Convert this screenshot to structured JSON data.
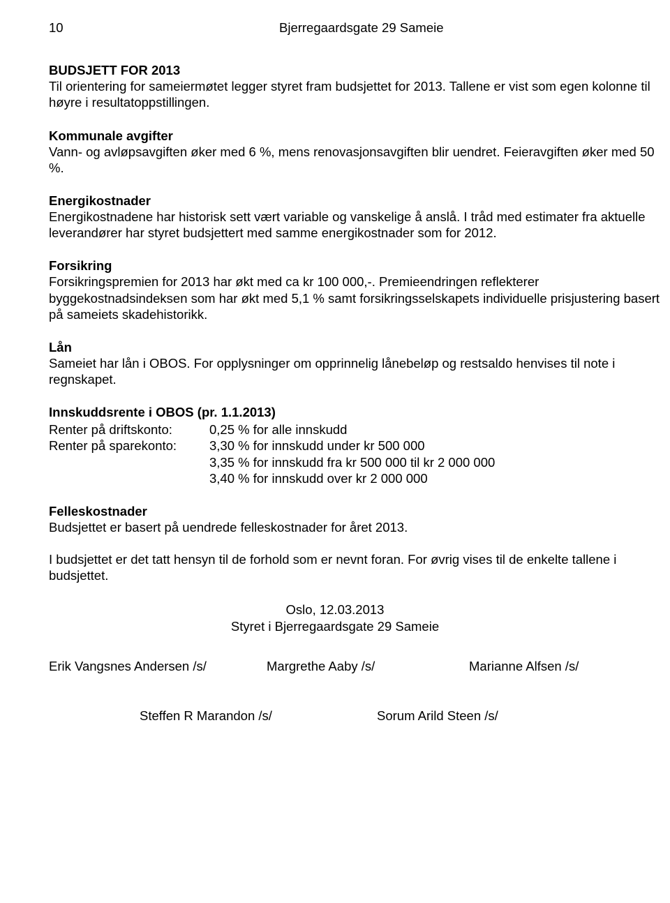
{
  "header": {
    "page_number": "10",
    "title": "Bjerregaardsgate 29 Sameie"
  },
  "budget": {
    "heading": "BUDSJETT FOR 2013",
    "text": "Til orientering for sameiermøtet legger styret fram budsjettet for 2013. Tallene er vist som egen kolonne til høyre i resultatoppstillingen."
  },
  "kommunale": {
    "heading": "Kommunale avgifter",
    "text": "Vann- og avløpsavgiften øker med 6 %, mens renovasjonsavgiften blir uendret. Feieravgiften øker med 50 %."
  },
  "energi": {
    "heading": "Energikostnader",
    "text": "Energikostnadene har historisk sett vært variable og vanskelige å anslå. I tråd med estimater fra aktuelle leverandører har styret budsjettert med samme energikostnader som for 2012."
  },
  "forsikring": {
    "heading": "Forsikring",
    "text": "Forsikringspremien for 2013 har økt med ca kr 100 000,-. Premieendringen reflekterer byggekostnadsindeksen som har økt med 5,1 % samt forsikringsselskapets individuelle prisjustering basert på sameiets skadehistorikk."
  },
  "laan": {
    "heading": "Lån",
    "text": "Sameiet har lån i OBOS. For opplysninger om opprinnelig lånebeløp og restsaldo henvises til note i regnskapet."
  },
  "innskudd": {
    "heading": "Innskuddsrente i OBOS (pr. 1.1.2013)",
    "rows": [
      {
        "label": "Renter på driftskonto:",
        "value": "0,25 % for alle innskudd"
      },
      {
        "label": "Renter på sparekonto:",
        "value": "3,30 % for innskudd under kr 500 000"
      },
      {
        "label": "",
        "value": "3,35 % for innskudd fra kr 500 000 til kr 2 000 000"
      },
      {
        "label": "",
        "value": "3,40 % for innskudd over kr 2 000 000"
      }
    ]
  },
  "felles": {
    "heading": "Felleskostnader",
    "text1": "Budsjettet er basert på uendrede felleskostnader for året 2013.",
    "text2": "I budsjettet er det tatt hensyn til de forhold som er nevnt foran. For øvrig vises til de enkelte tallene i budsjettet."
  },
  "closing": {
    "place_date": "Oslo, 12.03.2013",
    "styret": "Styret i Bjerregaardsgate 29 Sameie"
  },
  "signatures": {
    "sig1": "Erik Vangsnes Andersen /s/",
    "sig2": "Margrethe Aaby  /s/",
    "sig3": "Marianne Alfsen /s/",
    "sig4": "Steffen R Marandon  /s/",
    "sig5": "Sorum   Arild Steen /s/"
  }
}
